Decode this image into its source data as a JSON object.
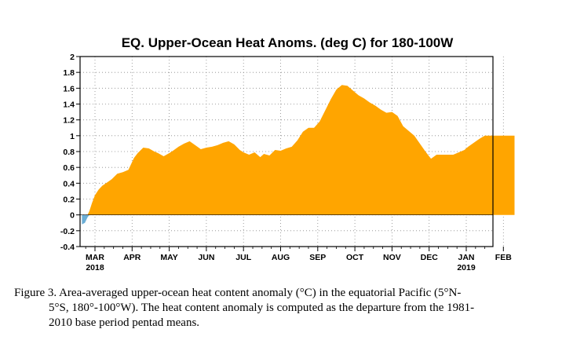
{
  "chart_data": {
    "type": "area",
    "title": "EQ. Upper-Ocean Heat Anoms. (deg C) for 180-100W",
    "ylim": [
      -0.4,
      2
    ],
    "y_ticks": [
      -0.4,
      -0.2,
      0,
      0.2,
      0.4,
      0.6,
      0.8,
      1,
      1.2,
      1.4,
      1.6,
      1.8,
      2
    ],
    "y_tick_labels": [
      "-0.4",
      "-0.2",
      "0",
      "0.2",
      "0.4",
      "0.6",
      "0.8",
      "1",
      "1.2",
      "1.4",
      "1.6",
      "1.8",
      "2"
    ],
    "x_months": [
      {
        "label": "MAR",
        "year": "2018"
      },
      {
        "label": "APR",
        "year": ""
      },
      {
        "label": "MAY",
        "year": ""
      },
      {
        "label": "JUN",
        "year": ""
      },
      {
        "label": "JUL",
        "year": ""
      },
      {
        "label": "AUG",
        "year": ""
      },
      {
        "label": "SEP",
        "year": ""
      },
      {
        "label": "OCT",
        "year": ""
      },
      {
        "label": "NOV",
        "year": ""
      },
      {
        "label": "DEC",
        "year": ""
      },
      {
        "label": "JAN",
        "year": "2019"
      },
      {
        "label": "FEB",
        "year": ""
      }
    ],
    "xlim_months": [
      -0.35,
      11.3
    ],
    "grid": true,
    "positive_color": "#ffa500",
    "negative_color": "#6baed6",
    "series": [
      {
        "x": [
          -0.35,
          -0.27,
          -0.2,
          -0.15,
          -0.08,
          0.0,
          0.1,
          0.2,
          0.3,
          0.45,
          0.6,
          0.75,
          0.9,
          1.05,
          1.15,
          1.3,
          1.45,
          1.6,
          1.7,
          1.85,
          2.0,
          2.1,
          2.25,
          2.4,
          2.55,
          2.7,
          2.85,
          3.0,
          3.15,
          3.3,
          3.45,
          3.6,
          3.75,
          3.9,
          4.0,
          4.15,
          4.3,
          4.45,
          4.55,
          4.7,
          4.85,
          5.0,
          5.15,
          5.3,
          5.45,
          5.6,
          5.75,
          5.9,
          6.05,
          6.2,
          6.35,
          6.5,
          6.65,
          6.8,
          6.95,
          7.1,
          7.25,
          7.4,
          7.55,
          7.7,
          7.85,
          8.0,
          8.15,
          8.3,
          8.45,
          8.6,
          8.75,
          8.9,
          9.05,
          9.2,
          9.35,
          9.5,
          9.65,
          9.8,
          9.95,
          10.05,
          10.2,
          10.35,
          10.5,
          10.65,
          10.8,
          10.95,
          11.1,
          11.2,
          11.3
        ],
        "y": [
          -0.12,
          -0.1,
          -0.03,
          0.05,
          0.15,
          0.25,
          0.32,
          0.37,
          0.4,
          0.45,
          0.52,
          0.54,
          0.57,
          0.72,
          0.78,
          0.85,
          0.84,
          0.8,
          0.78,
          0.74,
          0.78,
          0.81,
          0.86,
          0.9,
          0.93,
          0.88,
          0.83,
          0.85,
          0.86,
          0.88,
          0.91,
          0.93,
          0.89,
          0.82,
          0.79,
          0.76,
          0.79,
          0.73,
          0.77,
          0.75,
          0.82,
          0.81,
          0.84,
          0.86,
          0.94,
          1.05,
          1.1,
          1.1,
          1.18,
          1.32,
          1.46,
          1.58,
          1.64,
          1.63,
          1.57,
          1.51,
          1.47,
          1.42,
          1.38,
          1.33,
          1.29,
          1.3,
          1.25,
          1.12,
          1.06,
          1.0,
          0.9,
          0.8,
          0.71,
          0.76,
          0.76,
          0.76,
          0.76,
          0.79,
          0.82,
          0.86,
          0.91,
          0.96,
          1.0,
          1.0,
          1.0,
          1.0,
          1.0,
          1.0,
          1.0
        ]
      }
    ]
  },
  "caption": {
    "line1": "Figure 3. Area-averaged upper-ocean heat content anomaly (°C) in the equatorial Pacific (5°N-",
    "line2": "5°S, 180°-100°W). The heat content anomaly is computed as the departure from the 1981-",
    "line3": "2010 base period pentad means."
  }
}
